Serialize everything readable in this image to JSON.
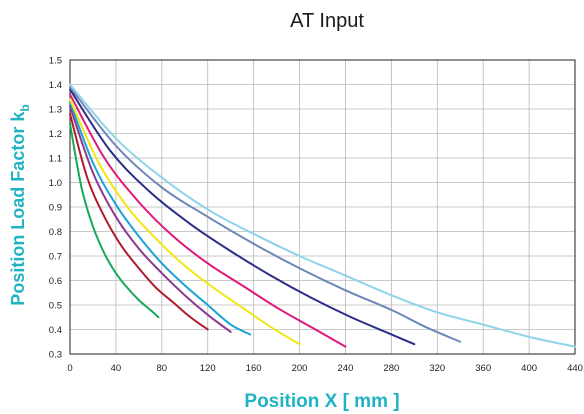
{
  "chart_data": {
    "type": "line",
    "title": "AT Input",
    "xlabel": "Position X [ mm ]",
    "ylabel": "Position Load Factor k",
    "ylabel_subscript": "b",
    "xlim": [
      0,
      440
    ],
    "ylim": [
      0.3,
      1.5
    ],
    "x_ticks": [
      0,
      40,
      80,
      120,
      160,
      200,
      240,
      280,
      320,
      360,
      400,
      440
    ],
    "y_ticks": [
      0.3,
      0.4,
      0.5,
      0.6,
      0.7,
      0.8,
      0.9,
      1.0,
      1.1,
      1.2,
      1.3,
      1.4,
      1.5
    ],
    "grid": true,
    "series": [
      {
        "color": "#17a85a",
        "x": [
          0,
          10,
          20,
          30,
          40,
          50,
          60,
          70,
          77
        ],
        "y": [
          1.24,
          0.98,
          0.82,
          0.71,
          0.63,
          0.57,
          0.52,
          0.48,
          0.45
        ]
      },
      {
        "color": "#b01c2e",
        "x": [
          0,
          15,
          30,
          45,
          60,
          75,
          90,
          105,
          120
        ],
        "y": [
          1.28,
          1.02,
          0.86,
          0.74,
          0.65,
          0.57,
          0.51,
          0.45,
          0.4
        ]
      },
      {
        "color": "#8b3a8e",
        "x": [
          0,
          20,
          40,
          60,
          80,
          100,
          120,
          140
        ],
        "y": [
          1.31,
          1.04,
          0.86,
          0.73,
          0.63,
          0.54,
          0.46,
          0.39
        ]
      },
      {
        "color": "#1ba3d8",
        "x": [
          0,
          20,
          40,
          60,
          80,
          100,
          120,
          140,
          157
        ],
        "y": [
          1.33,
          1.08,
          0.91,
          0.78,
          0.67,
          0.58,
          0.5,
          0.42,
          0.38
        ]
      },
      {
        "color": "#f2e615",
        "x": [
          0,
          25,
          50,
          75,
          100,
          125,
          150,
          175,
          200
        ],
        "y": [
          1.34,
          1.08,
          0.9,
          0.77,
          0.66,
          0.57,
          0.49,
          0.41,
          0.34
        ]
      },
      {
        "color": "#e0187a",
        "x": [
          0,
          30,
          60,
          90,
          120,
          150,
          180,
          210,
          240
        ],
        "y": [
          1.36,
          1.1,
          0.92,
          0.78,
          0.67,
          0.58,
          0.49,
          0.41,
          0.33
        ]
      },
      {
        "color": "#2a2e86",
        "x": [
          0,
          35,
          70,
          105,
          140,
          175,
          210,
          245,
          280,
          300
        ],
        "y": [
          1.38,
          1.13,
          0.96,
          0.83,
          0.72,
          0.62,
          0.53,
          0.45,
          0.38,
          0.34
        ]
      },
      {
        "color": "#6f86b8",
        "x": [
          0,
          40,
          80,
          120,
          160,
          200,
          240,
          280,
          310,
          340
        ],
        "y": [
          1.39,
          1.15,
          0.98,
          0.86,
          0.75,
          0.65,
          0.56,
          0.48,
          0.41,
          0.35
        ]
      },
      {
        "color": "#8fd3ea",
        "x": [
          0,
          40,
          80,
          120,
          160,
          200,
          240,
          280,
          320,
          360,
          400,
          440
        ],
        "y": [
          1.4,
          1.18,
          1.02,
          0.89,
          0.79,
          0.7,
          0.62,
          0.54,
          0.47,
          0.42,
          0.37,
          0.33
        ]
      }
    ]
  }
}
